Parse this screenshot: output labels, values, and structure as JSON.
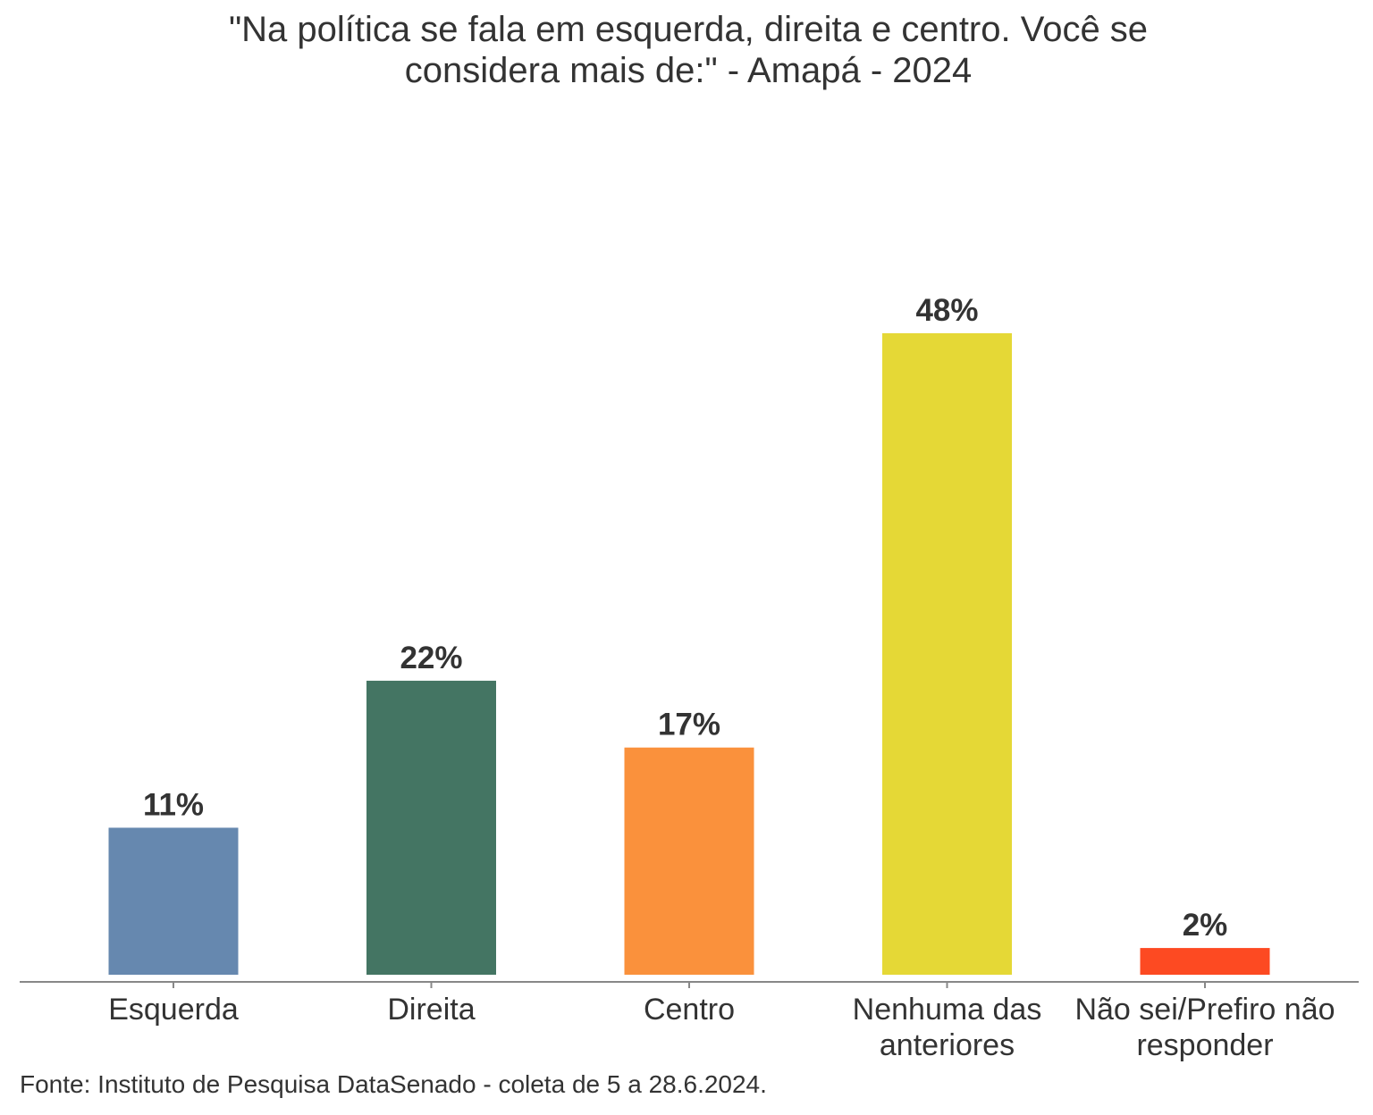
{
  "chart_data": {
    "type": "bar",
    "title_lines": [
      "\"Na política se fala em esquerda, direita e centro. Você se",
      "considera mais de:\" - Amapá - 2024"
    ],
    "categories": [
      [
        "Esquerda"
      ],
      [
        "Direita"
      ],
      [
        "Centro"
      ],
      [
        "Nenhuma das",
        "anteriores"
      ],
      [
        "Não sei/Prefiro não",
        "responder"
      ]
    ],
    "values": [
      11,
      22,
      17,
      48,
      2
    ],
    "value_labels": [
      "11%",
      "22%",
      "17%",
      "48%",
      "2%"
    ],
    "colors": [
      "#6688AF",
      "#447563",
      "#FA913C",
      "#E5D836",
      "#FD4A22"
    ],
    "xlabel": "",
    "ylabel": "",
    "ylim": [
      0,
      48
    ],
    "grid": false,
    "legend": "none"
  },
  "footer": "Fonte: Instituto de Pesquisa DataSenado - coleta de 5 a 28.6.2024."
}
